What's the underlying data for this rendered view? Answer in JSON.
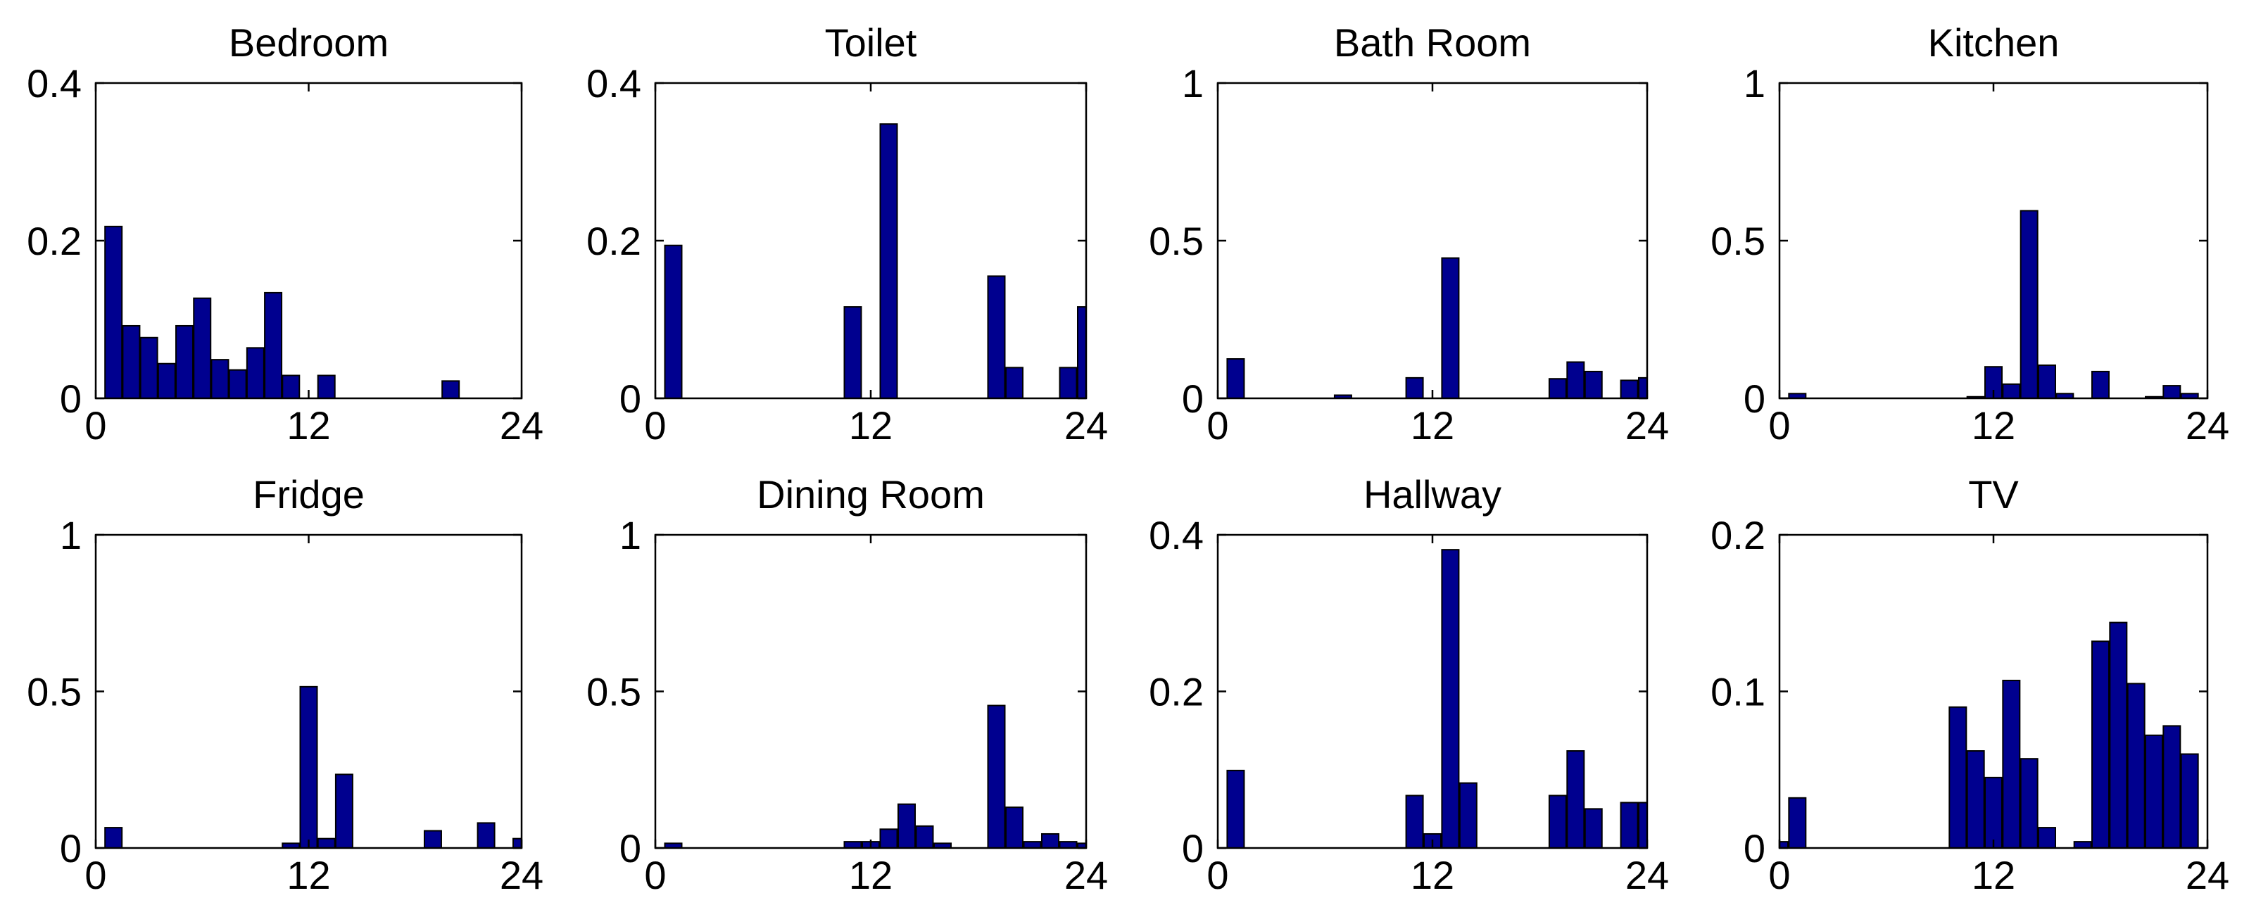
{
  "colors": {
    "bar_fill": "#00008f",
    "bar_stroke": "#000000",
    "axis": "#000000",
    "background": "#ffffff"
  },
  "chart_data": [
    {
      "type": "bar",
      "title": "Bedroom",
      "xlim": [
        0,
        24
      ],
      "ylim": [
        0,
        0.4
      ],
      "xticks": [
        {
          "value": 0,
          "label": "0"
        },
        {
          "value": 12,
          "label": "12"
        },
        {
          "value": 24,
          "label": "24"
        }
      ],
      "yticks": [
        {
          "value": 0,
          "label": "0"
        },
        {
          "value": 0.2,
          "label": "0.2"
        },
        {
          "value": 0.4,
          "label": "0.4"
        }
      ],
      "x": [
        1,
        2,
        3,
        4,
        5,
        6,
        7,
        8,
        9,
        10,
        11,
        12,
        13,
        14,
        15,
        16,
        17,
        18,
        19,
        20,
        21,
        22,
        23,
        24
      ],
      "values": [
        0.218,
        0.092,
        0.077,
        0.044,
        0.092,
        0.127,
        0.049,
        0.036,
        0.064,
        0.134,
        0.029,
        0,
        0.029,
        0,
        0,
        0,
        0,
        0,
        0,
        0.022,
        0,
        0,
        0,
        0
      ]
    },
    {
      "type": "bar",
      "title": "Toilet",
      "xlim": [
        0,
        24
      ],
      "ylim": [
        0,
        0.4
      ],
      "xticks": [
        {
          "value": 0,
          "label": "0"
        },
        {
          "value": 12,
          "label": "12"
        },
        {
          "value": 24,
          "label": "24"
        }
      ],
      "yticks": [
        {
          "value": 0,
          "label": "0"
        },
        {
          "value": 0.2,
          "label": "0.2"
        },
        {
          "value": 0.4,
          "label": "0.4"
        }
      ],
      "x": [
        1,
        2,
        3,
        4,
        5,
        6,
        7,
        8,
        9,
        10,
        11,
        12,
        13,
        14,
        15,
        16,
        17,
        18,
        19,
        20,
        21,
        22,
        23,
        24
      ],
      "values": [
        0.194,
        0,
        0,
        0,
        0,
        0,
        0,
        0,
        0,
        0,
        0.116,
        0,
        0.348,
        0,
        0,
        0,
        0,
        0,
        0.155,
        0.039,
        0,
        0,
        0.039,
        0.116
      ]
    },
    {
      "type": "bar",
      "title": "Bath Room",
      "xlim": [
        0,
        24
      ],
      "ylim": [
        0,
        1
      ],
      "xticks": [
        {
          "value": 0,
          "label": "0"
        },
        {
          "value": 12,
          "label": "12"
        },
        {
          "value": 24,
          "label": "24"
        }
      ],
      "yticks": [
        {
          "value": 0,
          "label": "0"
        },
        {
          "value": 0.5,
          "label": "0.5"
        },
        {
          "value": 1,
          "label": "1"
        }
      ],
      "x": [
        1,
        2,
        3,
        4,
        5,
        6,
        7,
        8,
        9,
        10,
        11,
        12,
        13,
        14,
        15,
        16,
        17,
        18,
        19,
        20,
        21,
        22,
        23,
        24
      ],
      "values": [
        0.125,
        0,
        0,
        0,
        0,
        0,
        0.01,
        0,
        0,
        0,
        0.065,
        0,
        0.445,
        0,
        0,
        0,
        0,
        0,
        0.062,
        0.115,
        0.085,
        0,
        0.057,
        0.065
      ]
    },
    {
      "type": "bar",
      "title": "Kitchen",
      "xlim": [
        0,
        24
      ],
      "ylim": [
        0,
        1
      ],
      "xticks": [
        {
          "value": 0,
          "label": "0"
        },
        {
          "value": 12,
          "label": "12"
        },
        {
          "value": 24,
          "label": "24"
        }
      ],
      "yticks": [
        {
          "value": 0,
          "label": "0"
        },
        {
          "value": 0.5,
          "label": "0.5"
        },
        {
          "value": 1,
          "label": "1"
        }
      ],
      "x": [
        1,
        2,
        3,
        4,
        5,
        6,
        7,
        8,
        9,
        10,
        11,
        12,
        13,
        14,
        15,
        16,
        17,
        18,
        19,
        20,
        21,
        22,
        23,
        24
      ],
      "values": [
        0.015,
        0,
        0,
        0,
        0,
        0,
        0,
        0,
        0,
        0,
        0.005,
        0.1,
        0.045,
        0.595,
        0.105,
        0.015,
        0,
        0.085,
        0,
        0,
        0.005,
        0.04,
        0.015,
        0
      ]
    },
    {
      "type": "bar",
      "title": "Fridge",
      "xlim": [
        0,
        24
      ],
      "ylim": [
        0,
        1
      ],
      "xticks": [
        {
          "value": 0,
          "label": "0"
        },
        {
          "value": 12,
          "label": "12"
        },
        {
          "value": 24,
          "label": "24"
        }
      ],
      "yticks": [
        {
          "value": 0,
          "label": "0"
        },
        {
          "value": 0.5,
          "label": "0.5"
        },
        {
          "value": 1,
          "label": "1"
        }
      ],
      "x": [
        1,
        2,
        3,
        4,
        5,
        6,
        7,
        8,
        9,
        10,
        11,
        12,
        13,
        14,
        15,
        16,
        17,
        18,
        19,
        20,
        21,
        22,
        23,
        24
      ],
      "values": [
        0.065,
        0,
        0,
        0,
        0,
        0,
        0,
        0,
        0,
        0,
        0.015,
        0.515,
        0.03,
        0.235,
        0,
        0,
        0,
        0,
        0.055,
        0,
        0,
        0.08,
        0,
        0.03
      ]
    },
    {
      "type": "bar",
      "title": "Dining Room",
      "xlim": [
        0,
        24
      ],
      "ylim": [
        0,
        1
      ],
      "xticks": [
        {
          "value": 0,
          "label": "0"
        },
        {
          "value": 12,
          "label": "12"
        },
        {
          "value": 24,
          "label": "24"
        }
      ],
      "yticks": [
        {
          "value": 0,
          "label": "0"
        },
        {
          "value": 0.5,
          "label": "0.5"
        },
        {
          "value": 1,
          "label": "1"
        }
      ],
      "x": [
        1,
        2,
        3,
        4,
        5,
        6,
        7,
        8,
        9,
        10,
        11,
        12,
        13,
        14,
        15,
        16,
        17,
        18,
        19,
        20,
        21,
        22,
        23,
        24
      ],
      "values": [
        0.015,
        0,
        0,
        0,
        0,
        0,
        0,
        0,
        0,
        0,
        0.02,
        0.02,
        0.06,
        0.14,
        0.07,
        0.015,
        0,
        0,
        0.455,
        0.13,
        0.02,
        0.045,
        0.02,
        0.015
      ]
    },
    {
      "type": "bar",
      "title": "Hallway",
      "xlim": [
        0,
        24
      ],
      "ylim": [
        0,
        0.4
      ],
      "xticks": [
        {
          "value": 0,
          "label": "0"
        },
        {
          "value": 12,
          "label": "12"
        },
        {
          "value": 24,
          "label": "24"
        }
      ],
      "yticks": [
        {
          "value": 0,
          "label": "0"
        },
        {
          "value": 0.2,
          "label": "0.2"
        },
        {
          "value": 0.4,
          "label": "0.4"
        }
      ],
      "x": [
        1,
        2,
        3,
        4,
        5,
        6,
        7,
        8,
        9,
        10,
        11,
        12,
        13,
        14,
        15,
        16,
        17,
        18,
        19,
        20,
        21,
        22,
        23,
        24
      ],
      "values": [
        0.099,
        0,
        0,
        0,
        0,
        0,
        0,
        0,
        0,
        0,
        0.067,
        0.018,
        0.381,
        0.083,
        0,
        0,
        0,
        0,
        0.067,
        0.124,
        0.05,
        0,
        0.058,
        0.058
      ]
    },
    {
      "type": "bar",
      "title": "TV",
      "xlim": [
        0,
        24
      ],
      "ylim": [
        0,
        0.2
      ],
      "xticks": [
        {
          "value": 0,
          "label": "0"
        },
        {
          "value": 12,
          "label": "12"
        },
        {
          "value": 24,
          "label": "24"
        }
      ],
      "yticks": [
        {
          "value": 0,
          "label": "0"
        },
        {
          "value": 0.1,
          "label": "0.1"
        },
        {
          "value": 0.2,
          "label": "0.2"
        }
      ],
      "x": [
        0,
        1,
        2,
        3,
        4,
        5,
        6,
        7,
        8,
        9,
        10,
        11,
        12,
        13,
        14,
        15,
        16,
        17,
        18,
        19,
        20,
        21,
        22,
        23,
        24
      ],
      "values": [
        0.004,
        0.032,
        0,
        0,
        0,
        0,
        0,
        0,
        0,
        0,
        0.09,
        0.062,
        0.045,
        0.107,
        0.057,
        0.013,
        0,
        0.004,
        0.132,
        0.144,
        0.105,
        0.072,
        0.078,
        0.06,
        0
      ]
    }
  ]
}
